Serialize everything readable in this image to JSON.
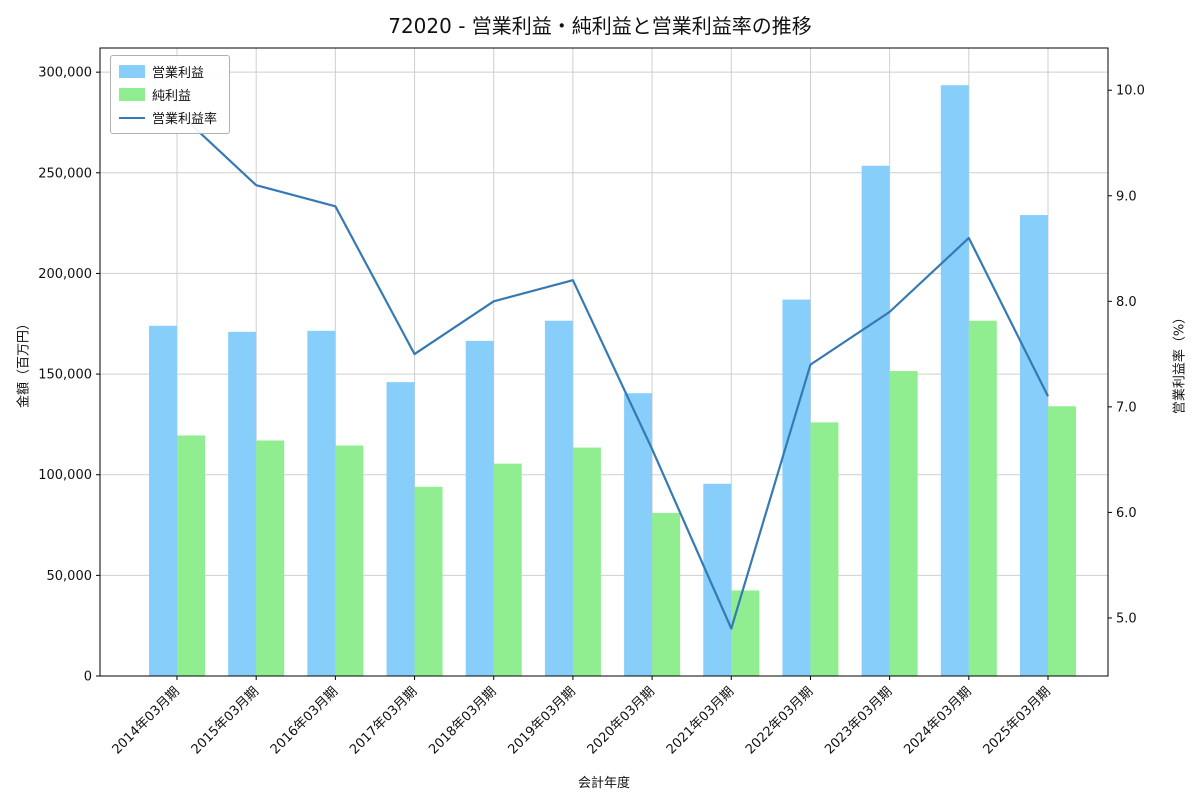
{
  "title": "72020 - 営業利益・純利益と営業利益率の推移",
  "axes": {
    "x_label": "会計年度",
    "y_left_label": "金額（百万円）",
    "y_right_label": "営業利益率（%）"
  },
  "chart_data": {
    "type": "bar",
    "subtype": "grouped bars with line on secondary axis",
    "title": "72020 - 営業利益・純利益と営業利益率の推移",
    "xlabel": "会計年度",
    "categories": [
      "2014年03月期",
      "2015年03月期",
      "2016年03月期",
      "2017年03月期",
      "2018年03月期",
      "2019年03月期",
      "2020年03月期",
      "2021年03月期",
      "2022年03月期",
      "2023年03月期",
      "2024年03月期",
      "2025年03月期"
    ],
    "series": [
      {
        "name": "営業利益",
        "type": "bar",
        "axis": "left",
        "color": "#87CEFA",
        "values": [
          174000,
          171000,
          171500,
          146000,
          166500,
          176500,
          140500,
          95500,
          187000,
          253500,
          293500,
          229000
        ]
      },
      {
        "name": "純利益",
        "type": "bar",
        "axis": "left",
        "color": "#90EE90",
        "values": [
          119500,
          117000,
          114500,
          94000,
          105500,
          113500,
          81000,
          42500,
          126000,
          151500,
          176500,
          134000
        ]
      },
      {
        "name": "営業利益率",
        "type": "line",
        "axis": "right",
        "color": "#3579b5",
        "values": [
          9.8,
          9.1,
          8.9,
          7.5,
          8.0,
          8.2,
          6.6,
          4.9,
          7.4,
          7.9,
          8.6,
          7.1
        ]
      }
    ],
    "y_left": {
      "label": "金額（百万円）",
      "min": 0,
      "max": 312000,
      "ticks": [
        0,
        50000,
        100000,
        150000,
        200000,
        250000,
        300000
      ]
    },
    "y_right": {
      "label": "営業利益率（%）",
      "min": 4.45,
      "max": 10.4,
      "ticks": [
        5.0,
        6.0,
        7.0,
        8.0,
        9.0,
        10.0
      ]
    },
    "grid": true,
    "legend_position": "upper left"
  }
}
